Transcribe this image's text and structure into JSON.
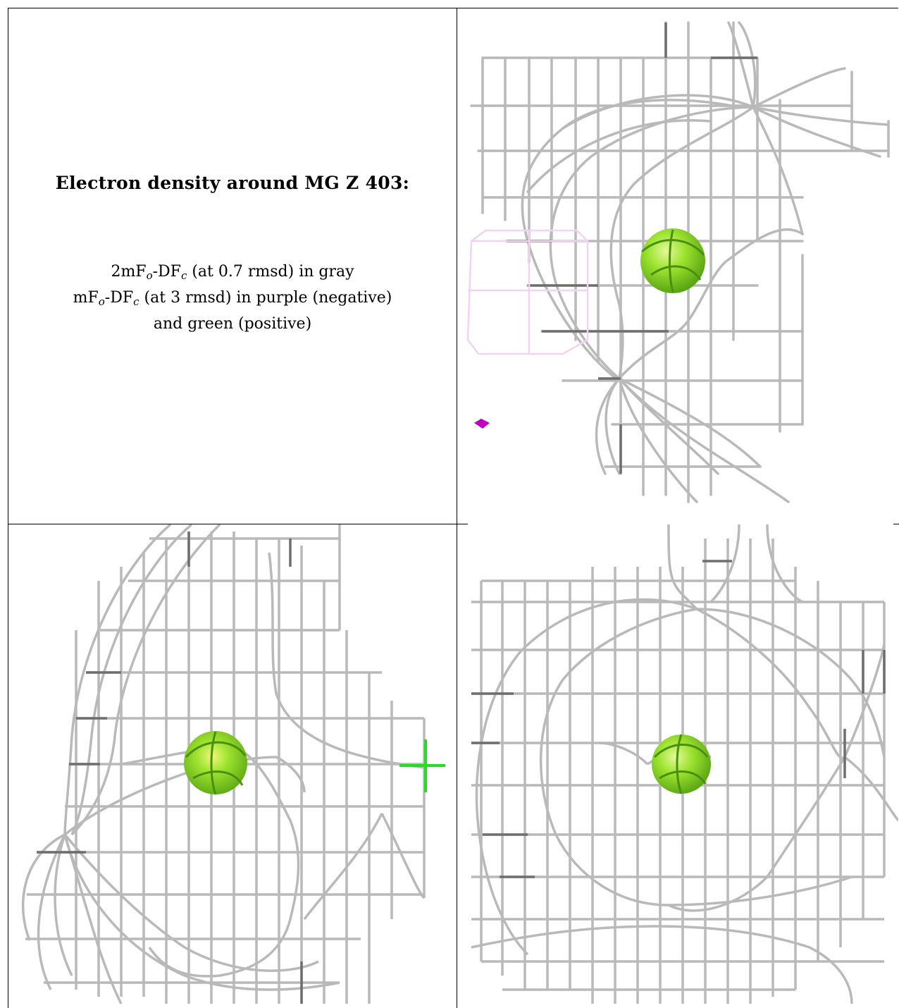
{
  "title": "Electron density around MG Z 403:",
  "legend": {
    "line1_prefix": "2mF",
    "line1_sub1": "o",
    "line1_mid": "-DF",
    "line1_sub2": "c",
    "line1_suffix": " (at 0.7 rmsd) in gray",
    "line2_prefix": "mF",
    "line2_sub1": "o",
    "line2_mid": "-DF",
    "line2_sub2": "c",
    "line2_suffix": " (at 3 rmsd) in purple (negative)",
    "line3": "and green (positive)"
  },
  "colors": {
    "mesh": "#b4b4b4",
    "mesh_dark": "#707070",
    "atom": "#8fe02a",
    "atom_highlight": "#d8f58a",
    "negative": "#c000c0",
    "positive": "#22dd22"
  },
  "panels": [
    "view-top-right",
    "view-bottom-left",
    "view-bottom-right"
  ]
}
